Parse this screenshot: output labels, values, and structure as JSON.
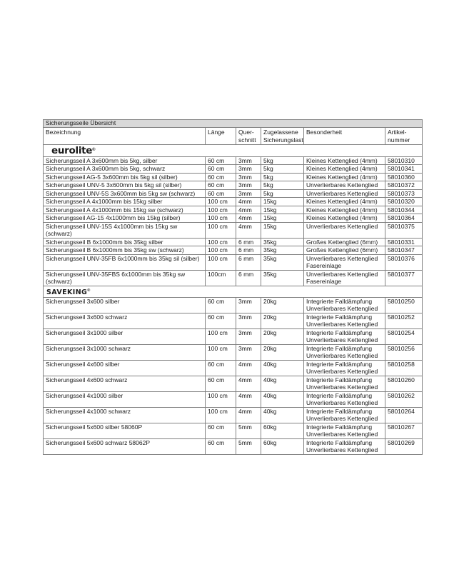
{
  "table": {
    "title": "Sicherungsseile Übersicht",
    "colors": {
      "title_bg": "#d9d9d9",
      "border": "#828282",
      "text": "#1a1a1a"
    },
    "columns": [
      "Bezeichnung",
      "Länge",
      "Quer-\nschnitt",
      "Zugelassene\nSicherungslast",
      "Besonderheit",
      "Artikel-\nnummer"
    ],
    "sections": [
      {
        "brand": "eurolite",
        "mark": "®",
        "style": "eurolite",
        "rows": [
          {
            "name": "Sicherungsseil A 3x600mm bis 5kg, silber",
            "length": "60 cm",
            "cross": "3mm",
            "load": "5kg",
            "features": "Kleines Kettenglied (4mm)",
            "article": "58010310"
          },
          {
            "name": "Sicherungsseil A 3x600mm bis 5kg, schwarz",
            "length": "60 cm",
            "cross": "3mm",
            "load": "5kg",
            "features": "Kleines Kettenglied (4mm)",
            "article": "58010341"
          },
          {
            "name": "Sicherungsseil AG-5 3x600mm bis 5kg sil (silber)",
            "length": "60 cm",
            "cross": "3mm",
            "load": "5kg",
            "features": "Kleines Kettenglied (4mm)",
            "article": "58010360"
          },
          {
            "name": "Sicherungsseil UNV-5 3x600mm bis 5kg sil (silber)",
            "length": "60 cm",
            "cross": "3mm",
            "load": "5kg",
            "features": "Unverlierbares Kettenglied",
            "article": "58010372"
          },
          {
            "name": "Sicherungsseil UNV-5S 3x600mm bis 5kg sw (schwarz)",
            "length": "60 cm",
            "cross": "3mm",
            "load": "5kg",
            "features": "Unverlierbares Kettenglied",
            "article": "58010373"
          },
          {
            "name": "Sicherungsseil A 4x1000mm bis 15kg silber",
            "length": "100 cm",
            "cross": "4mm",
            "load": "15kg",
            "features": "Kleines Kettenglied (4mm)",
            "article": "58010320"
          },
          {
            "name": "Sicherungsseil A 4x1000mm bis 15kg sw (schwarz)",
            "length": "100 cm",
            "cross": "4mm",
            "load": "15kg",
            "features": "Kleines Kettenglied (4mm)",
            "article": "58010344"
          },
          {
            "name": "Sicherungsseil AG-15 4x1000mm bis 15kg (silber)",
            "length": "100 cm",
            "cross": "4mm",
            "load": "15kg",
            "features": "Kleines Kettenglied (4mm)",
            "article": "58010364"
          },
          {
            "name": "Sicherungsseil UNV-15S 4x1000mm bis 15kg sw (schwarz)",
            "length": "100 cm",
            "cross": "4mm",
            "load": "15kg",
            "features": "Unverlierbares Kettenglied",
            "article": "58010375"
          },
          {
            "name": "Sicherungsseil B 6x1000mm bis 35kg silber",
            "length": "100 cm",
            "cross": "6 mm",
            "load": "35kg",
            "features": "Großes Kettenglied (6mm)",
            "article": "58010331"
          },
          {
            "name": "Sicherungsseil B 6x1000mm bis 35kg sw (schwarz)",
            "length": "100 cm",
            "cross": "6 mm",
            "load": "35kg",
            "features": "Großes Kettenglied (6mm)",
            "article": "58010347"
          },
          {
            "name": "Sicherungsseil UNV-35FB 6x1000mm bis 35kg sil (silber)",
            "length": "100 cm",
            "cross": "6 mm",
            "load": "35kg",
            "features": "Unverlierbares Kettenglied\nFasereinlage",
            "article": "58010376"
          },
          {
            "name": "Sicherungsseil UNV-35FBS 6x1000mm bis 35kg sw (schwarz)",
            "length": "100cm",
            "cross": "6 mm",
            "load": "35kg",
            "features": "Unverlierbares Kettenglied\nFasereinlage",
            "article": "58010377"
          }
        ]
      },
      {
        "brand": "SAVEKING",
        "mark": "®",
        "style": "saveking",
        "rows": [
          {
            "name": "Sicherungsseil 3x600 silber",
            "length": "60 cm",
            "cross": "3mm",
            "load": "20kg",
            "features": "Integrierte Falldämpfung\nUnverlierbares Kettenglied",
            "article": "58010250"
          },
          {
            "name": "Sicherungsseil 3x600 schwarz",
            "length": "60 cm",
            "cross": "3mm",
            "load": "20kg",
            "features": "Integrierte Falldämpfung\nUnverlierbares Kettenglied",
            "article": "58010252"
          },
          {
            "name": "Sicherungsseil 3x1000 silber",
            "length": "100 cm",
            "cross": "3mm",
            "load": "20kg",
            "features": "Integrierte Falldämpfung\nUnverlierbares Kettenglied",
            "article": "58010254"
          },
          {
            "name": "Sicherungsseil 3x1000 schwarz",
            "length": "100 cm",
            "cross": "3mm",
            "load": "20kg",
            "features": "Integrierte Falldämpfung\nUnverlierbares Kettenglied",
            "article": "58010256"
          },
          {
            "name": "Sicherungsseil 4x600 silber",
            "length": "60 cm",
            "cross": "4mm",
            "load": "40kg",
            "features": "Integrierte Falldämpfung\nUnverlierbares Kettenglied",
            "article": "58010258"
          },
          {
            "name": "Sicherungsseil 4x600 schwarz",
            "length": "60 cm",
            "cross": "4mm",
            "load": "40kg",
            "features": "Integrierte Falldämpfung\nUnverlierbares Kettenglied",
            "article": "58010260"
          },
          {
            "name": "Sicherungsseil 4x1000 silber",
            "length": "100 cm",
            "cross": "4mm",
            "load": "40kg",
            "features": "Integrierte Falldämpfung\nUnverlierbares Kettenglied",
            "article": "58010262"
          },
          {
            "name": "Sicherungsseil 4x1000 schwarz",
            "length": "100 cm",
            "cross": "4mm",
            "load": "40kg",
            "features": "Integrierte Falldämpfung\nUnverlierbares Kettenglied",
            "article": "58010264"
          },
          {
            "name": "Sicherungsseil 5x600 silber 58060P",
            "length": "60 cm",
            "cross": "5mm",
            "load": "60kg",
            "features": "Integrierte Falldämpfung\nUnverlierbares Kettenglied",
            "article": "58010267"
          },
          {
            "name": "Sicherungsseil 5x600 schwarz 58062P",
            "length": "60 cm",
            "cross": "5mm",
            "load": "60kg",
            "features": "Integrierte Falldämpfung\nUnverlierbares Kettenglied",
            "article": "58010269"
          }
        ]
      }
    ]
  }
}
